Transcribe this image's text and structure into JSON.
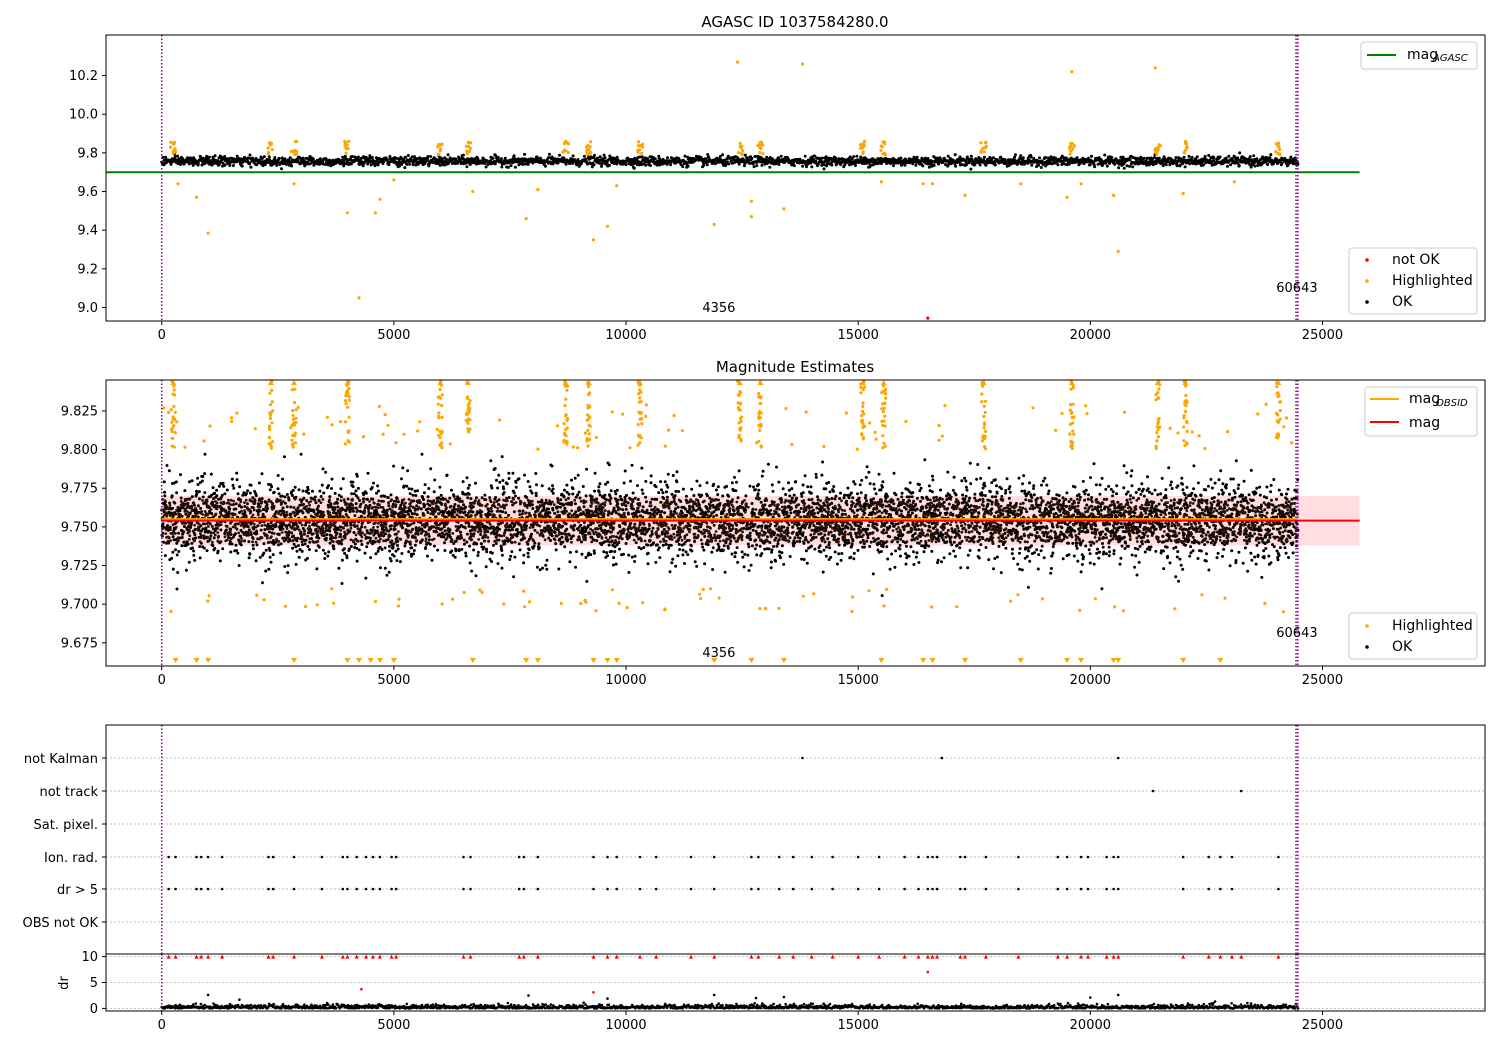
{
  "figure": {
    "title": "AGASC ID 1037584280.0",
    "colors": {
      "ok": "#000000",
      "highlighted": "#ffa500",
      "not_ok": "#ff0000",
      "mag_agasc": "#008000",
      "mag_obsid": "#ffa500",
      "mag": "#ff0000",
      "mag_band": "#ffdde0",
      "obs_marker": "#800080"
    },
    "obs_markers": [
      0,
      24430,
      24470
    ],
    "obs_labels": [
      {
        "text": "4356",
        "x": 12000
      },
      {
        "text": "60643",
        "x": 24450
      }
    ]
  },
  "chart_data": [
    {
      "type": "scatter",
      "title": "",
      "xlim": [
        -1200,
        28500
      ],
      "ylim": [
        8.93,
        10.41
      ],
      "xticks": [
        0,
        5000,
        10000,
        15000,
        20000,
        25000
      ],
      "yticks": [
        9.0,
        9.2,
        9.4,
        9.6,
        9.8,
        10.0,
        10.2
      ],
      "ytick_labels": [
        "9.0",
        "9.2",
        "9.4",
        "9.6",
        "9.8",
        "10.0",
        "10.2"
      ],
      "mag_agasc": 9.7,
      "mag_agasc_x": [
        -1200,
        25800
      ],
      "ok_band": {
        "x_range": [
          0,
          24470
        ],
        "center": 9.757,
        "spread": 0.022
      },
      "highlighted_points": [
        {
          "x": 350,
          "y": 9.64
        },
        {
          "x": 750,
          "y": 9.57
        },
        {
          "x": 1000,
          "y": 9.385
        },
        {
          "x": 2850,
          "y": 9.64
        },
        {
          "x": 4250,
          "y": 9.05
        },
        {
          "x": 4000,
          "y": 9.49
        },
        {
          "x": 4600,
          "y": 9.49
        },
        {
          "x": 4700,
          "y": 9.56
        },
        {
          "x": 5000,
          "y": 9.66
        },
        {
          "x": 6700,
          "y": 9.6
        },
        {
          "x": 7850,
          "y": 9.46
        },
        {
          "x": 8100,
          "y": 9.61
        },
        {
          "x": 9300,
          "y": 9.35
        },
        {
          "x": 9600,
          "y": 9.42
        },
        {
          "x": 9800,
          "y": 9.63
        },
        {
          "x": 11900,
          "y": 9.43
        },
        {
          "x": 12400,
          "y": 10.27
        },
        {
          "x": 12700,
          "y": 9.55
        },
        {
          "x": 12700,
          "y": 9.47
        },
        {
          "x": 13400,
          "y": 9.51
        },
        {
          "x": 13800,
          "y": 10.26
        },
        {
          "x": 15500,
          "y": 9.65
        },
        {
          "x": 16400,
          "y": 9.64
        },
        {
          "x": 16600,
          "y": 9.64
        },
        {
          "x": 17300,
          "y": 9.58
        },
        {
          "x": 18500,
          "y": 9.64
        },
        {
          "x": 19500,
          "y": 9.57
        },
        {
          "x": 19600,
          "y": 10.22
        },
        {
          "x": 19800,
          "y": 9.64
        },
        {
          "x": 20500,
          "y": 9.58
        },
        {
          "x": 20600,
          "y": 9.29
        },
        {
          "x": 21400,
          "y": 10.24
        },
        {
          "x": 22000,
          "y": 9.59
        },
        {
          "x": 23100,
          "y": 9.65
        }
      ],
      "not_ok_points": [
        {
          "x": 16500,
          "y": 8.945
        }
      ],
      "legend": {
        "top": [
          "mag_AGASC"
        ],
        "bottom": [
          "not OK",
          "Highlighted",
          "OK"
        ]
      },
      "legend_labels": {
        "mag_agasc_main": "mag",
        "mag_agasc_sub": "AGASC",
        "not_ok": "not OK",
        "highlighted": "Highlighted",
        "ok": "OK"
      }
    },
    {
      "type": "scatter",
      "title": "Magnitude Estimates",
      "xlim": [
        -1200,
        28500
      ],
      "ylim": [
        9.66,
        9.845
      ],
      "xticks": [
        0,
        5000,
        10000,
        15000,
        20000,
        25000
      ],
      "yticks": [
        9.675,
        9.7,
        9.725,
        9.75,
        9.775,
        9.8,
        9.825
      ],
      "ytick_labels": [
        "9.675",
        "9.700",
        "9.725",
        "9.750",
        "9.775",
        "9.800",
        "9.825"
      ],
      "mag": 9.754,
      "mag_obsid": 9.755,
      "mag_band": [
        9.738,
        9.77
      ],
      "mag_x": [
        0,
        25800
      ],
      "highlighted_bursts_x": [
        250,
        2350,
        2850,
        4000,
        6000,
        6600,
        8700,
        9200,
        10300,
        12450,
        12900,
        15100,
        15550,
        17700,
        19600,
        21450,
        22050,
        24050
      ],
      "low_triangles_x": [
        300,
        750,
        1000,
        2850,
        4000,
        4250,
        4500,
        4700,
        5000,
        6700,
        7850,
        8100,
        9300,
        9600,
        9800,
        11900,
        12700,
        13400,
        15500,
        16400,
        16600,
        17300,
        18500,
        19500,
        19800,
        20500,
        20600,
        22000,
        22800
      ],
      "legend_labels": {
        "mag_obsid_main": "mag",
        "mag_obsid_sub": "OBSID",
        "mag": "mag",
        "highlighted": "Highlighted",
        "ok": "OK"
      }
    },
    {
      "type": "scatter",
      "title": "",
      "xlim": [
        -1200,
        28500
      ],
      "categories": [
        "not Kalman",
        "not track",
        "Sat. pixel.",
        "Ion. rad.",
        "dr > 5",
        "OBS not OK"
      ],
      "flag_points": {
        "not Kalman": [
          13800,
          16800,
          20600
        ],
        "not track": [
          21350,
          23250
        ],
        "Sat. pixel.": [],
        "Ion. rad.": [
          150,
          300,
          750,
          850,
          1000,
          1300,
          2300,
          2400,
          2850,
          3450,
          3900,
          4000,
          4200,
          4400,
          4550,
          4700,
          4950,
          5050,
          6500,
          6650,
          7700,
          7800,
          8100,
          9300,
          9600,
          9800,
          10300,
          10650,
          11400,
          11900,
          12700,
          12850,
          13300,
          13600,
          14000,
          14450,
          15000,
          15450,
          16000,
          16300,
          16500,
          16600,
          16700,
          17200,
          17300,
          17750,
          18450,
          19300,
          19500,
          19800,
          19950,
          20350,
          20500,
          20600,
          22000,
          22550,
          22800,
          23050,
          24050
        ],
        "dr > 5": [
          150,
          300,
          750,
          850,
          1000,
          1300,
          2300,
          2400,
          2850,
          3450,
          3900,
          4000,
          4200,
          4400,
          4550,
          4700,
          4950,
          5050,
          6500,
          6650,
          7700,
          7800,
          8100,
          9300,
          9600,
          9800,
          10300,
          10650,
          11400,
          11900,
          12700,
          12850,
          13300,
          13600,
          14000,
          14450,
          15000,
          15450,
          16000,
          16300,
          16500,
          16600,
          16700,
          17200,
          17300,
          17750,
          18450,
          19300,
          19500,
          19800,
          19950,
          20350,
          20500,
          20600,
          22000,
          22550,
          22800,
          23050,
          24050
        ],
        "OBS not OK": []
      }
    },
    {
      "type": "scatter",
      "title": "",
      "ylabel": "dr",
      "xlim": [
        -1200,
        28500
      ],
      "ylim": [
        -0.5,
        10.5
      ],
      "xticks": [
        0,
        5000,
        10000,
        15000,
        20000,
        25000
      ],
      "yticks": [
        0,
        5,
        10
      ],
      "ytick_labels": [
        "0",
        "5",
        "10"
      ],
      "capped_value": 10,
      "capped_x": [
        150,
        300,
        750,
        850,
        1000,
        1300,
        2300,
        2400,
        2850,
        3450,
        3900,
        4000,
        4200,
        4400,
        4550,
        4700,
        4950,
        5050,
        6500,
        6650,
        7700,
        7800,
        8100,
        9300,
        9600,
        9800,
        10300,
        10650,
        11400,
        11900,
        12700,
        12850,
        13300,
        13600,
        14000,
        14450,
        15000,
        15450,
        16000,
        16300,
        16500,
        16600,
        16700,
        17200,
        17300,
        17750,
        18450,
        19300,
        19500,
        19800,
        19950,
        20350,
        20500,
        20600,
        22000,
        22550,
        22800,
        23050,
        23250,
        24050
      ],
      "outliers": [
        {
          "x": 16500,
          "y": 7.0,
          "c": "red"
        },
        {
          "x": 4300,
          "y": 3.7,
          "c": "red"
        },
        {
          "x": 9300,
          "y": 3.1,
          "c": "red"
        },
        {
          "x": 1000,
          "y": 2.6,
          "c": "black"
        },
        {
          "x": 7900,
          "y": 2.5,
          "c": "black"
        },
        {
          "x": 11900,
          "y": 2.6,
          "c": "black"
        },
        {
          "x": 9600,
          "y": 1.9,
          "c": "black"
        },
        {
          "x": 12800,
          "y": 2.0,
          "c": "black"
        },
        {
          "x": 13400,
          "y": 2.2,
          "c": "black"
        },
        {
          "x": 20600,
          "y": 2.6,
          "c": "black"
        },
        {
          "x": 20000,
          "y": 2.1,
          "c": "black"
        }
      ]
    }
  ]
}
